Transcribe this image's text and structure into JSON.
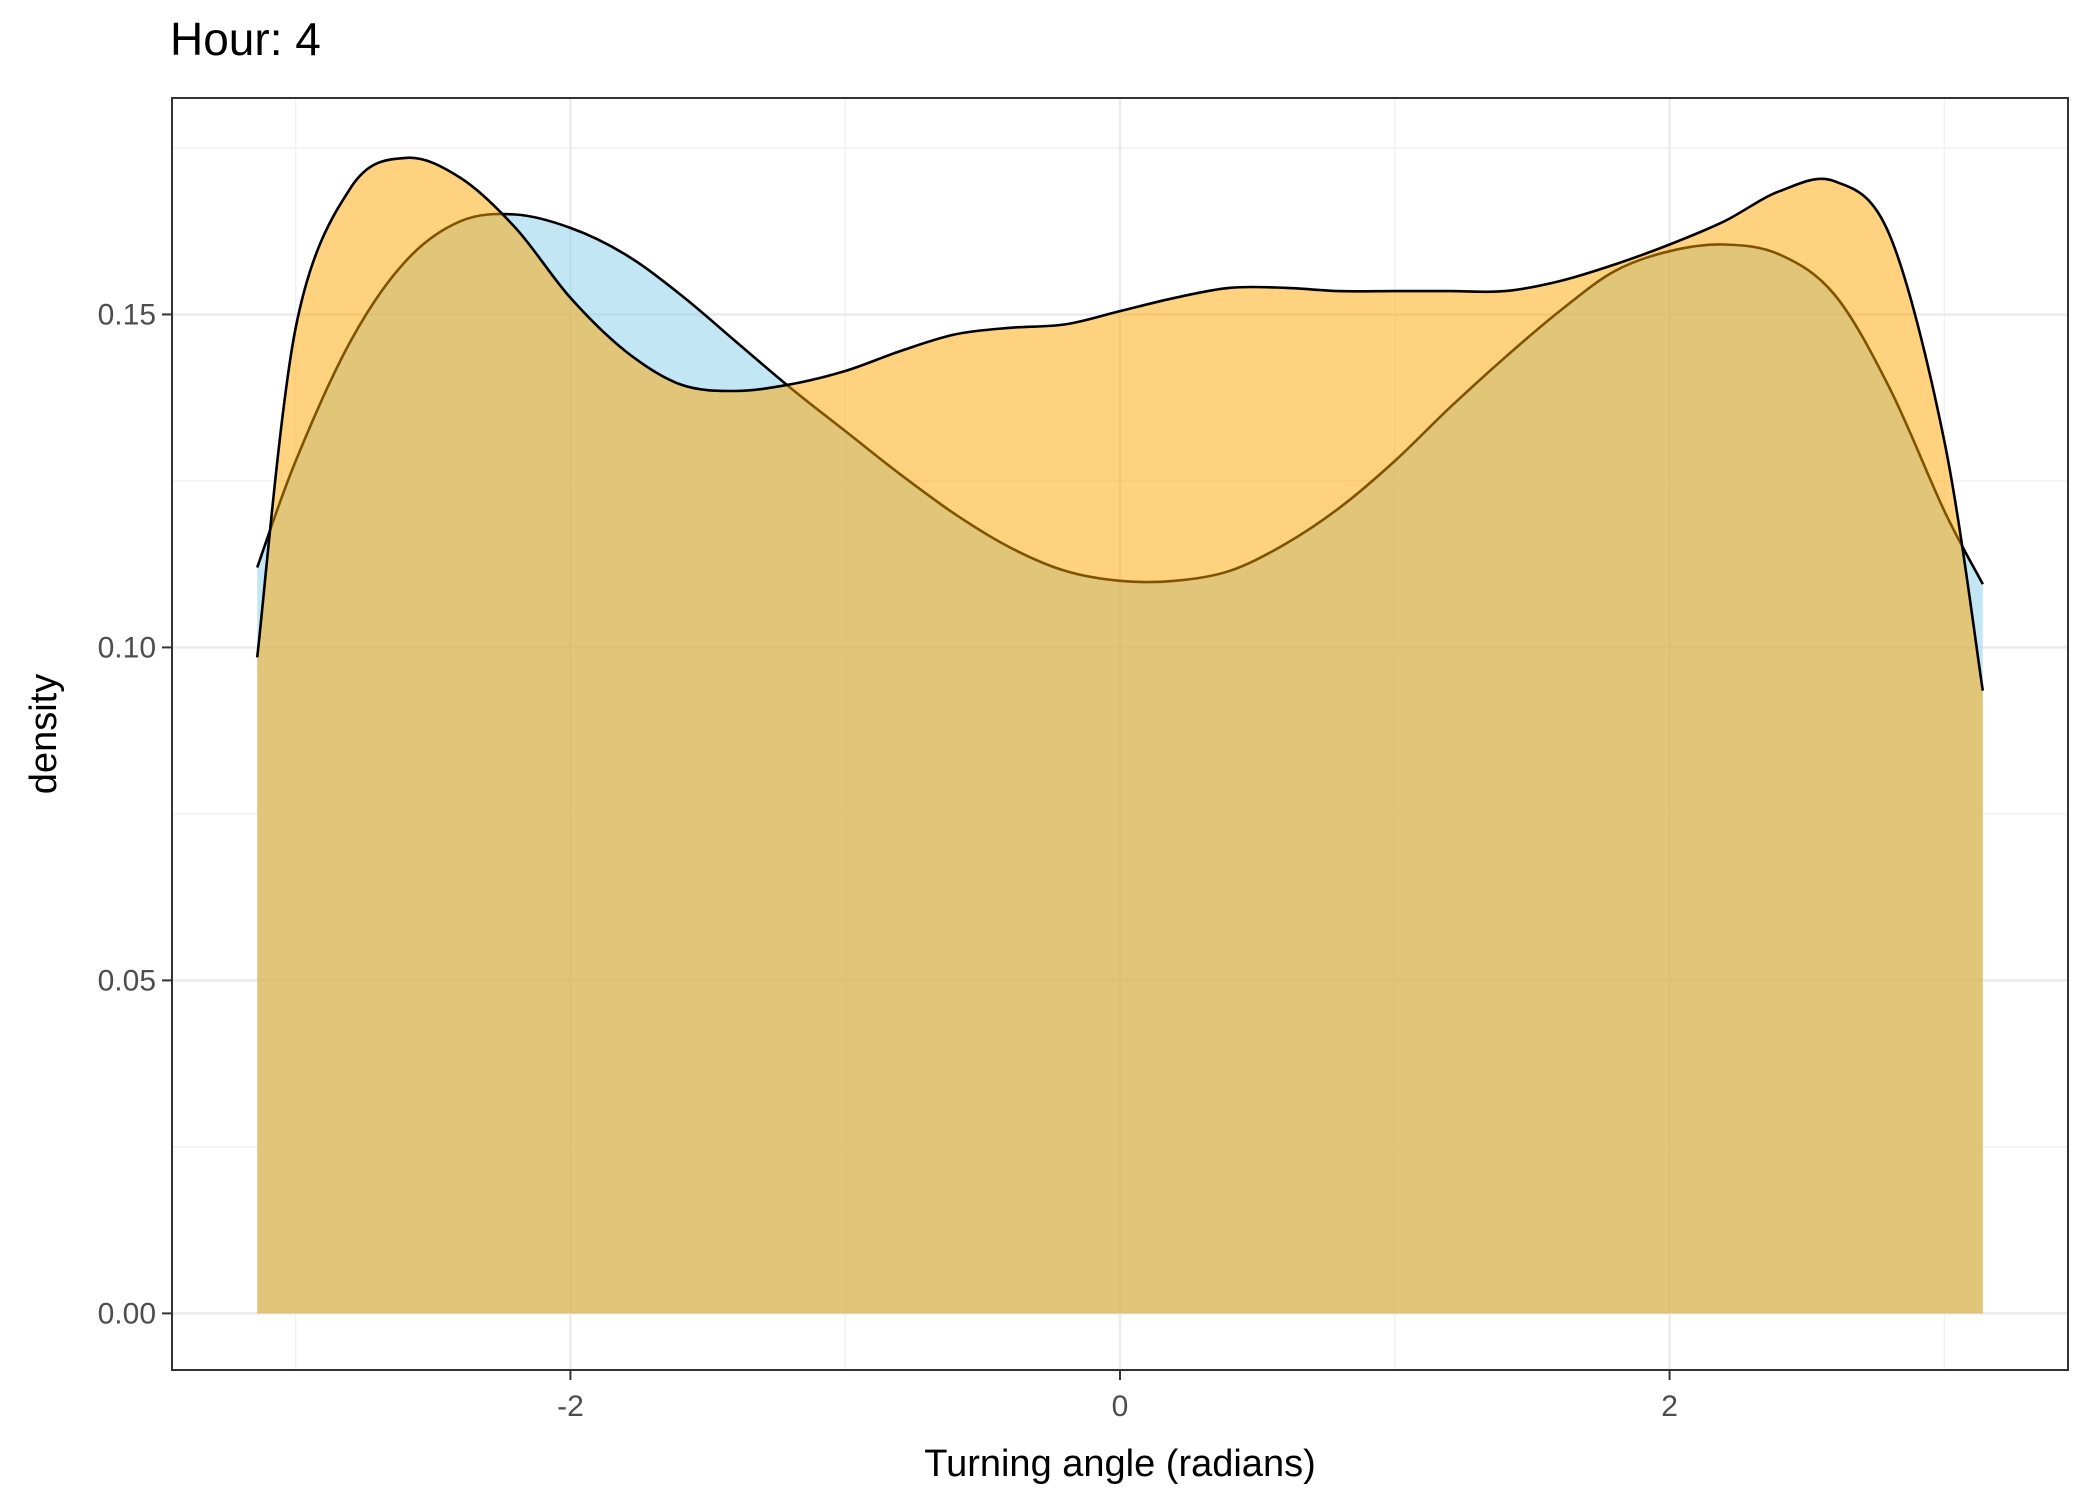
{
  "chart_data": {
    "type": "area",
    "title": "Hour: 4",
    "xlabel": "Turning angle (radians)",
    "ylabel": "density",
    "xlim": [
      -3.45,
      3.45
    ],
    "ylim": [
      -0.0085,
      0.1825
    ],
    "x_ticks": [
      -2,
      0,
      2
    ],
    "x_tick_labels": [
      "-2",
      "0",
      "2"
    ],
    "y_ticks": [
      0.0,
      0.05,
      0.1,
      0.15
    ],
    "y_tick_labels": [
      "0.00",
      "0.05",
      "0.10",
      "0.15"
    ],
    "grid": true,
    "legend": "none",
    "series": [
      {
        "fill": "#87ceeb",
        "x": [
          -3.14,
          -3.0,
          -2.8,
          -2.6,
          -2.4,
          -2.2,
          -2.0,
          -1.8,
          -1.6,
          -1.4,
          -1.2,
          -1.0,
          -0.8,
          -0.6,
          -0.4,
          -0.2,
          0.0,
          0.2,
          0.4,
          0.6,
          0.8,
          1.0,
          1.2,
          1.4,
          1.6,
          1.8,
          2.0,
          2.2,
          2.4,
          2.6,
          2.8,
          3.0,
          3.14
        ],
        "y": [
          0.112,
          0.128,
          0.146,
          0.158,
          0.164,
          0.165,
          0.163,
          0.159,
          0.153,
          0.146,
          0.139,
          0.1325,
          0.126,
          0.12,
          0.115,
          0.1115,
          0.11,
          0.11,
          0.1115,
          0.1155,
          0.121,
          0.128,
          0.136,
          0.1435,
          0.1505,
          0.1565,
          0.1595,
          0.1605,
          0.159,
          0.153,
          0.139,
          0.1205,
          0.1095
        ]
      },
      {
        "fill": "#ffa500",
        "x": [
          -3.14,
          -3.0,
          -2.8,
          -2.6,
          -2.4,
          -2.2,
          -2.0,
          -1.8,
          -1.6,
          -1.4,
          -1.2,
          -1.0,
          -0.8,
          -0.6,
          -0.4,
          -0.2,
          0.0,
          0.2,
          0.4,
          0.6,
          0.8,
          1.0,
          1.2,
          1.4,
          1.6,
          1.8,
          2.0,
          2.2,
          2.4,
          2.6,
          2.8,
          3.0,
          3.14
        ],
        "y": [
          0.0985,
          0.148,
          0.169,
          0.1735,
          0.1705,
          0.163,
          0.1525,
          0.1445,
          0.1395,
          0.1385,
          0.1395,
          0.1415,
          0.1445,
          0.147,
          0.148,
          0.1485,
          0.1505,
          0.1525,
          0.154,
          0.154,
          0.1535,
          0.1535,
          0.1535,
          0.1535,
          0.155,
          0.1575,
          0.1605,
          0.164,
          0.1685,
          0.17,
          0.162,
          0.131,
          0.0935
        ]
      }
    ]
  }
}
